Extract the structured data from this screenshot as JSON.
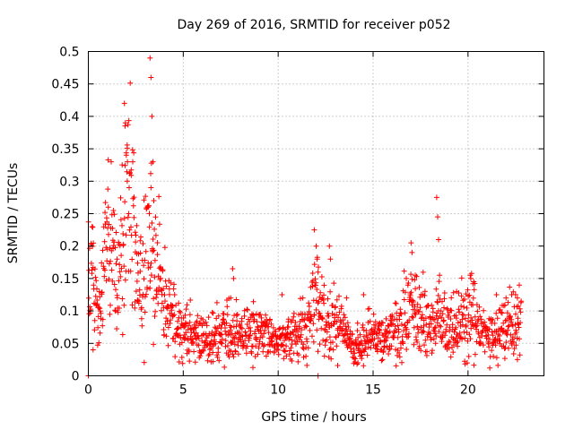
{
  "chart_data": {
    "type": "scatter",
    "title": "Day 269 of 2016, SRMTID for receiver p052",
    "xlabel": "GPS time / hours",
    "ylabel": "SRMTID / TECUs",
    "xlim": [
      0,
      24
    ],
    "ylim": [
      0,
      0.5
    ],
    "xticks": [
      0,
      5,
      10,
      15,
      20
    ],
    "xtick_labels": [
      "0",
      "5",
      "10",
      "15",
      "20"
    ],
    "yticks": [
      0,
      0.05,
      0.1,
      0.15,
      0.2,
      0.25,
      0.3,
      0.35,
      0.4,
      0.45,
      0.5
    ],
    "ytick_labels": [
      "0",
      "0.05",
      "0.1",
      "0.15",
      "0.2",
      "0.25",
      "0.3",
      "0.35",
      "0.4",
      "0.45",
      "0.5"
    ],
    "grid": true,
    "marker": "plus",
    "color": "#ff0000",
    "series": [
      {
        "name": "SRMTID",
        "profile": [
          [
            0.0,
            0.14
          ],
          [
            0.2,
            0.17
          ],
          [
            0.4,
            0.11
          ],
          [
            0.6,
            0.12
          ],
          [
            0.8,
            0.16
          ],
          [
            1.0,
            0.22
          ],
          [
            1.2,
            0.21
          ],
          [
            1.4,
            0.15
          ],
          [
            1.6,
            0.14
          ],
          [
            1.8,
            0.22
          ],
          [
            2.0,
            0.28
          ],
          [
            2.2,
            0.3
          ],
          [
            2.4,
            0.2
          ],
          [
            2.6,
            0.14
          ],
          [
            2.8,
            0.13
          ],
          [
            3.0,
            0.19
          ],
          [
            3.2,
            0.25
          ],
          [
            3.4,
            0.2
          ],
          [
            3.6,
            0.17
          ],
          [
            3.8,
            0.16
          ],
          [
            4.0,
            0.12
          ],
          [
            4.5,
            0.09
          ],
          [
            5.0,
            0.07
          ],
          [
            5.5,
            0.06
          ],
          [
            6.0,
            0.055
          ],
          [
            7.0,
            0.06
          ],
          [
            7.5,
            0.07
          ],
          [
            8.0,
            0.06
          ],
          [
            9.0,
            0.07
          ],
          [
            9.5,
            0.065
          ],
          [
            10.0,
            0.05
          ],
          [
            10.5,
            0.06
          ],
          [
            11.0,
            0.065
          ],
          [
            11.5,
            0.07
          ],
          [
            12.0,
            0.13
          ],
          [
            12.3,
            0.09
          ],
          [
            12.7,
            0.08
          ],
          [
            13.0,
            0.09
          ],
          [
            13.5,
            0.06
          ],
          [
            14.0,
            0.04
          ],
          [
            14.5,
            0.05
          ],
          [
            15.0,
            0.06
          ],
          [
            15.5,
            0.06
          ],
          [
            16.0,
            0.065
          ],
          [
            16.5,
            0.075
          ],
          [
            17.0,
            0.12
          ],
          [
            17.3,
            0.1
          ],
          [
            17.6,
            0.08
          ],
          [
            18.0,
            0.075
          ],
          [
            18.4,
            0.09
          ],
          [
            18.8,
            0.07
          ],
          [
            19.5,
            0.07
          ],
          [
            20.2,
            0.1
          ],
          [
            20.6,
            0.07
          ],
          [
            21.0,
            0.06
          ],
          [
            21.5,
            0.065
          ],
          [
            22.0,
            0.08
          ],
          [
            22.3,
            0.09
          ],
          [
            22.8,
            0.07
          ]
        ],
        "spikes": [
          [
            0.0,
            0.0
          ],
          [
            0.2,
            0.23
          ],
          [
            0.25,
            0.04
          ],
          [
            1.05,
            0.26
          ],
          [
            1.9,
            0.42
          ],
          [
            1.95,
            0.39
          ],
          [
            2.0,
            0.34
          ],
          [
            2.05,
            0.3
          ],
          [
            2.15,
            0.29
          ],
          [
            3.25,
            0.49
          ],
          [
            3.3,
            0.46
          ],
          [
            3.35,
            0.4
          ],
          [
            3.4,
            0.33
          ],
          [
            3.45,
            0.27
          ],
          [
            3.3,
            0.29
          ],
          [
            7.6,
            0.165
          ],
          [
            7.65,
            0.15
          ],
          [
            7.5,
            0.12
          ],
          [
            10.2,
            0.125
          ],
          [
            11.3,
            0.12
          ],
          [
            11.9,
            0.225
          ],
          [
            12.0,
            0.2
          ],
          [
            12.05,
            0.18
          ],
          [
            12.1,
            0.16
          ],
          [
            12.1,
            0.0
          ],
          [
            12.7,
            0.2
          ],
          [
            12.75,
            0.18
          ],
          [
            13.6,
            0.12
          ],
          [
            14.2,
            0.02
          ],
          [
            14.5,
            0.125
          ],
          [
            17.0,
            0.205
          ],
          [
            17.05,
            0.19
          ],
          [
            18.35,
            0.275
          ],
          [
            18.4,
            0.245
          ],
          [
            18.45,
            0.21
          ],
          [
            18.5,
            0.155
          ],
          [
            19.4,
            0.13
          ],
          [
            20.15,
            0.15
          ],
          [
            20.3,
            0.145
          ],
          [
            21.5,
            0.125
          ],
          [
            22.0,
            0.12
          ],
          [
            22.3,
            0.125
          ],
          [
            22.6,
            0.12
          ]
        ],
        "x_range": [
          0.0,
          22.8
        ],
        "point_count": 1500
      }
    ]
  }
}
